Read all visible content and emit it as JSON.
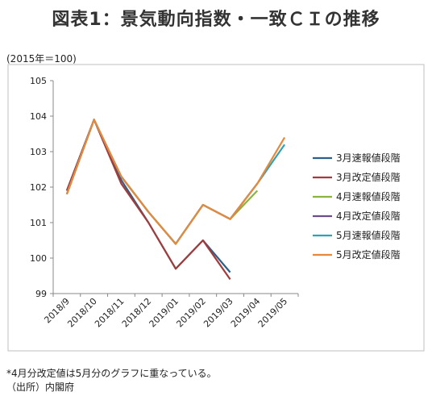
{
  "title": "図表1：景気動向指数・一致ＣＩの推移",
  "unit_label": "(2015年＝100)",
  "notes": [
    "*4月分改定値は5月分のグラフに重なっている。",
    "（出所）内閣府"
  ],
  "chart_data": {
    "type": "line",
    "title": "図表1：景気動向指数・一致ＣＩの推移",
    "categories": [
      "2018/9",
      "2018/10",
      "2018/11",
      "2018/12",
      "2019/01",
      "2019/02",
      "2019/03",
      "2019/04",
      "2019/05"
    ],
    "ylim": [
      99,
      105
    ],
    "yticks": [
      99,
      100,
      101,
      102,
      103,
      104,
      105
    ],
    "grid": false,
    "legend_position": "right",
    "series": [
      {
        "name": "3月速報値段階",
        "color": "#2e5f8a",
        "values": [
          101.9,
          103.9,
          102.2,
          101.0,
          99.7,
          100.5,
          99.6,
          null,
          null
        ]
      },
      {
        "name": "3月改定値段階",
        "color": "#a33b3b",
        "values": [
          101.9,
          103.9,
          102.1,
          101.0,
          99.7,
          100.5,
          99.4,
          null,
          null
        ]
      },
      {
        "name": "4月速報値段階",
        "color": "#8bb33f",
        "values": [
          101.8,
          103.9,
          102.3,
          101.3,
          100.4,
          101.5,
          101.1,
          101.9,
          null
        ]
      },
      {
        "name": "4月改定値段階",
        "color": "#6a4f8c",
        "values": [
          101.8,
          103.9,
          102.3,
          101.3,
          100.4,
          101.5,
          101.1,
          102.1,
          null
        ]
      },
      {
        "name": "5月速報値段階",
        "color": "#2fa2b5",
        "values": [
          101.8,
          103.9,
          102.3,
          101.3,
          100.4,
          101.5,
          101.1,
          102.1,
          103.2
        ]
      },
      {
        "name": "5月改定値段階",
        "color": "#e8893a",
        "values": [
          101.8,
          103.9,
          102.3,
          101.3,
          100.4,
          101.5,
          101.1,
          102.1,
          103.4
        ]
      }
    ]
  }
}
